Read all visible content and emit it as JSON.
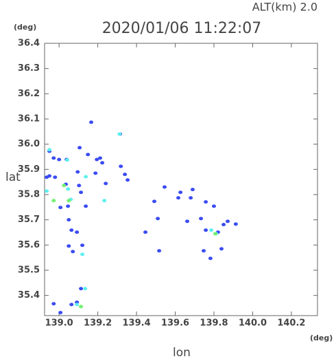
{
  "chart_data": {
    "type": "scatter",
    "title": "2020/01/06 11:22:07",
    "altitude_label": "ALT(km) 2.0",
    "y_unit": "(deg)",
    "x_unit": "(deg)",
    "xlabel": "lon",
    "ylabel": "lat",
    "xlim": [
      138.925,
      140.335
    ],
    "ylim": [
      35.32,
      36.4
    ],
    "xticks": [
      {
        "value": 139,
        "label": "139.0"
      },
      139.2,
      139.4,
      139.6,
      139.8,
      {
        "value": 140,
        "label": "140.0"
      },
      140.2
    ],
    "yticks": [
      35.4,
      35.5,
      35.6,
      35.7,
      35.8,
      35.9,
      {
        "value": 36,
        "label": "36.0"
      },
      36.1,
      36.2,
      36.3,
      36.4
    ],
    "series": [
      {
        "color": "#3b4cf2",
        "x": [
          138.95,
          138.972,
          138.936,
          138.95,
          138.979,
          139.0,
          139.039,
          139.106,
          139.096,
          139.149,
          139.195,
          139.212,
          139.223,
          139.315,
          139.319,
          139.103,
          139.113,
          139.138,
          139.05,
          139.064,
          139.092,
          139.05,
          139.071,
          139.12,
          139.007,
          139.046,
          139.035,
          139.492,
          139.51,
          139.446,
          139.545,
          139.616,
          139.68,
          139.69,
          139.758,
          139.8,
          139.733,
          139.758,
          139.821,
          139.85,
          139.871,
          139.913,
          139.839,
          139.782,
          139.113,
          138.972,
          139.007,
          139.064,
          139.092,
          139.166,
          139.188,
          139.241,
          139.662,
          139.517,
          139.747,
          139.627,
          139.34,
          139.354
        ],
        "values": [
          35.972,
          35.945,
          35.869,
          35.874,
          35.869,
          35.939,
          35.939,
          35.986,
          35.89,
          35.959,
          35.939,
          35.945,
          35.926,
          36.04,
          35.912,
          35.836,
          35.809,
          35.754,
          35.7,
          35.659,
          35.651,
          35.596,
          35.574,
          35.599,
          35.749,
          35.754,
          35.841,
          35.773,
          35.705,
          35.651,
          35.83,
          35.787,
          35.787,
          35.82,
          35.771,
          35.754,
          35.705,
          35.659,
          35.651,
          35.681,
          35.694,
          35.683,
          35.585,
          35.547,
          35.427,
          35.367,
          35.332,
          35.364,
          35.373,
          36.087,
          35.885,
          35.844,
          35.694,
          35.577,
          35.577,
          35.809,
          35.88,
          35.858
        ]
      },
      {
        "color": "#5ef0ee",
        "x": [
          138.95,
          139.042,
          139.12,
          139.312,
          139.135,
          139.092,
          139.138,
          139.234,
          138.936,
          139.046,
          139.786,
          139.06,
          139.811
        ],
        "values": [
          35.978,
          35.937,
          35.563,
          36.04,
          35.427,
          35.364,
          35.871,
          35.776,
          35.814,
          35.822,
          35.659,
          35.781,
          35.645
        ]
      },
      {
        "color": "#74f070",
        "x": [
          138.972,
          139.05,
          139.113,
          139.807,
          139.025
        ],
        "values": [
          35.776,
          35.776,
          35.356,
          35.645,
          35.836
        ]
      }
    ]
  }
}
